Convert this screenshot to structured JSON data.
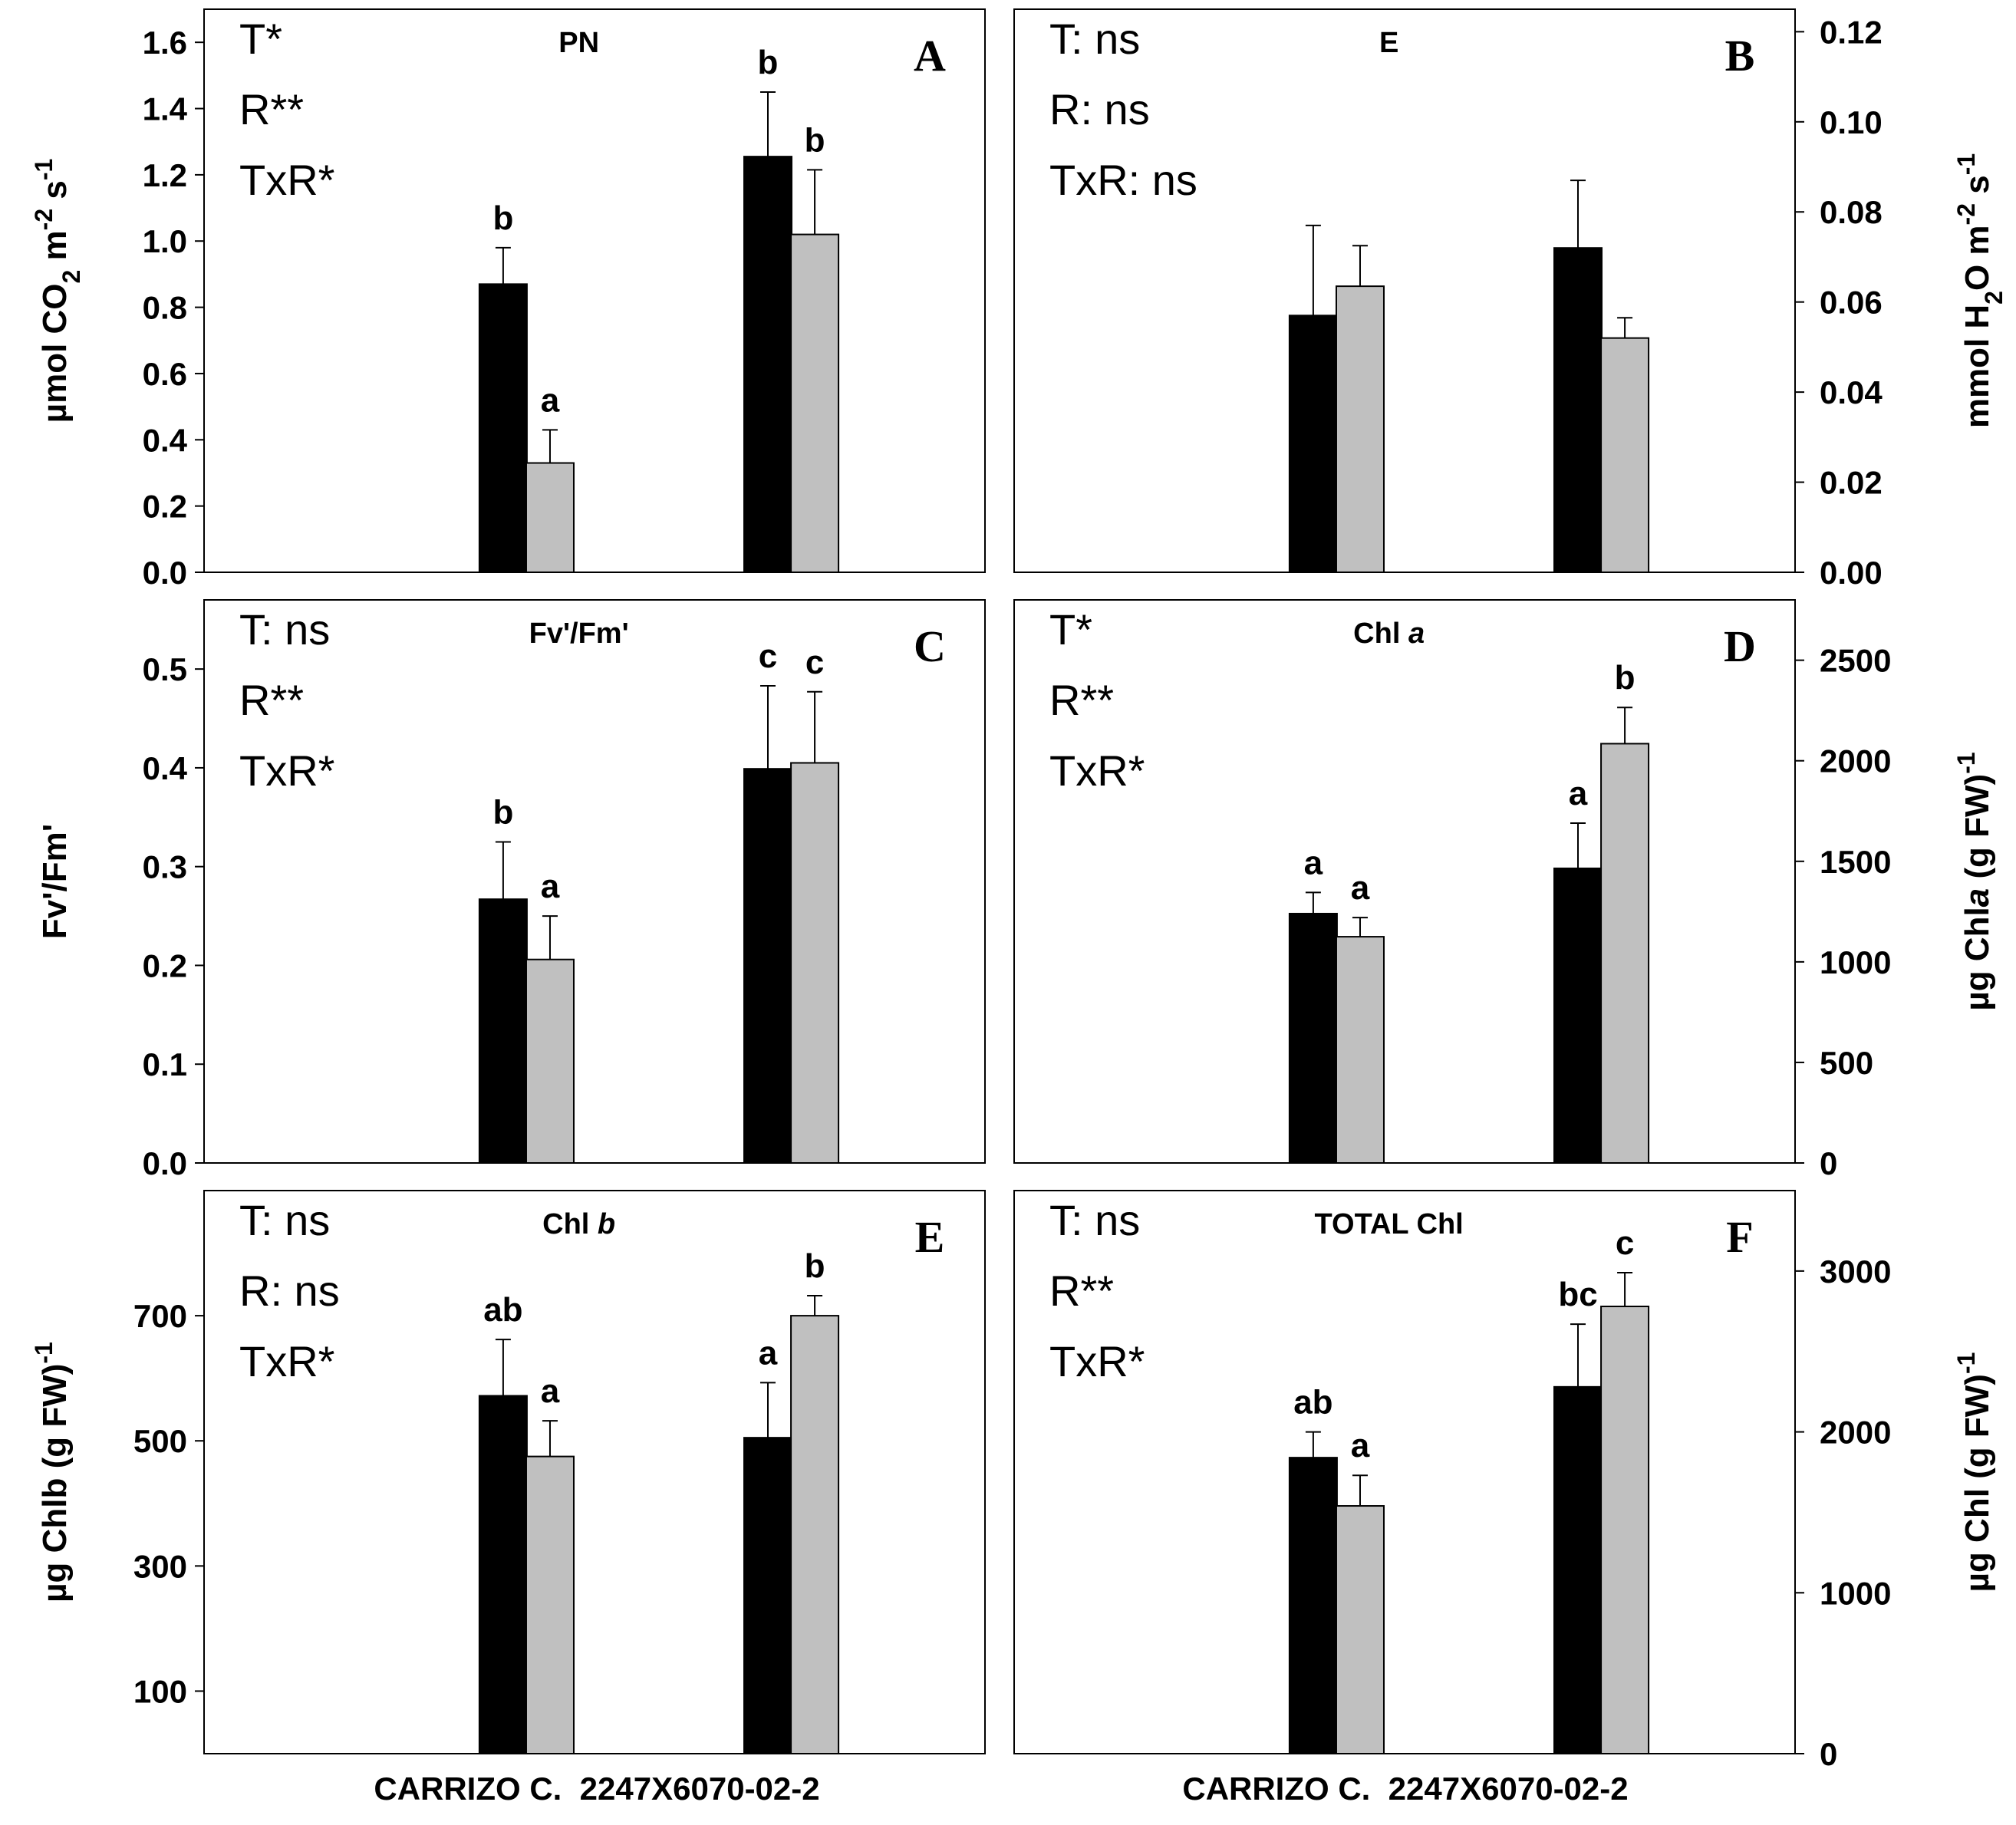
{
  "colors": {
    "treat1": "#000000",
    "treat2": "#c0c0c0",
    "axis": "#000000",
    "background": "#ffffff"
  },
  "bottom_labels": {
    "left": "CARRIZO C.  2247X6070-02-2",
    "right": "CARRIZO C.  2247X6070-02-2"
  },
  "chart_data": [
    {
      "id": "A",
      "type": "bar",
      "title": "PN",
      "letter": "A",
      "y_side": "left",
      "ylabel": "µmol CO2 m-2 s-1",
      "ylabel_parts": [
        {
          "t": "µmol CO"
        },
        {
          "t": "2",
          "s": "sub"
        },
        {
          "t": " m"
        },
        {
          "t": "-2",
          "s": "sup"
        },
        {
          "t": " s"
        },
        {
          "t": "-1",
          "s": "sup"
        }
      ],
      "ylim": [
        0,
        1.7
      ],
      "yticks": [
        "0.0",
        "0.2",
        "0.4",
        "0.6",
        "0.8",
        "1.0",
        "1.2",
        "1.4",
        "1.6"
      ],
      "stats": [
        "T*",
        "R**",
        "TxR*"
      ],
      "categories": [
        "CARRIZO C.",
        "2247X6070-02-2"
      ],
      "series": [
        {
          "name": "black",
          "values": [
            0.87,
            1.255
          ],
          "errors": [
            0.11,
            0.195
          ],
          "labels": [
            "b",
            "b"
          ]
        },
        {
          "name": "grey",
          "values": [
            0.33,
            1.02
          ],
          "errors": [
            0.1,
            0.195
          ],
          "labels": [
            "a",
            "b"
          ]
        }
      ]
    },
    {
      "id": "B",
      "type": "bar",
      "title": "E",
      "letter": "B",
      "y_side": "right",
      "ylabel": "mmol H2O m-2 s-1",
      "ylabel_parts": [
        {
          "t": "mmol H"
        },
        {
          "t": "2",
          "s": "sub"
        },
        {
          "t": "O m"
        },
        {
          "t": "-2",
          "s": "sup"
        },
        {
          "t": " s"
        },
        {
          "t": "-1",
          "s": "sup"
        }
      ],
      "ylim": [
        0,
        0.125
      ],
      "yticks": [
        "0.00",
        "0.02",
        "0.04",
        "0.06",
        "0.08",
        "0.10",
        "0.12"
      ],
      "stats": [
        "T: ns",
        "R: ns",
        "TxR: ns"
      ],
      "categories": [
        "CARRIZO C.",
        "2247X6070-02-2"
      ],
      "series": [
        {
          "name": "black",
          "values": [
            0.057,
            0.072
          ],
          "errors": [
            0.02,
            0.015
          ],
          "labels": [
            "",
            ""
          ]
        },
        {
          "name": "grey",
          "values": [
            0.0635,
            0.052
          ],
          "errors": [
            0.009,
            0.0045
          ],
          "labels": [
            "",
            ""
          ]
        }
      ]
    },
    {
      "id": "C",
      "type": "bar",
      "title": "Fv'/Fm'",
      "letter": "C",
      "y_side": "left",
      "ylabel": "Fv'/Fm'",
      "ylabel_parts": [
        {
          "t": "Fv'/Fm'"
        }
      ],
      "ylim": [
        0,
        0.57
      ],
      "yticks": [
        "0.0",
        "0.1",
        "0.2",
        "0.3",
        "0.4",
        "0.5"
      ],
      "stats": [
        "T: ns",
        "R**",
        "TxR*"
      ],
      "categories": [
        "CARRIZO C.",
        "2247X6070-02-2"
      ],
      "series": [
        {
          "name": "black",
          "values": [
            0.267,
            0.399
          ],
          "errors": [
            0.058,
            0.084
          ],
          "labels": [
            "b",
            "c"
          ]
        },
        {
          "name": "grey",
          "values": [
            0.206,
            0.405
          ],
          "errors": [
            0.044,
            0.072
          ],
          "labels": [
            "a",
            "c"
          ]
        }
      ]
    },
    {
      "id": "D",
      "type": "bar",
      "title": "Chl a",
      "title_italic": "a",
      "letter": "D",
      "y_side": "right",
      "ylabel": "µg Chla (g FW)-1",
      "ylabel_parts": [
        {
          "t": "µg Chl"
        },
        {
          "t": "a",
          "s": "it"
        },
        {
          "t": " (g FW)"
        },
        {
          "t": "-1",
          "s": "sup"
        }
      ],
      "ylim": [
        0,
        2800
      ],
      "yticks": [
        "0",
        "500",
        "1000",
        "1500",
        "2000",
        "2500"
      ],
      "stats": [
        "T*",
        "R**",
        "TxR*"
      ],
      "categories": [
        "CARRIZO C.",
        "2247X6070-02-2"
      ],
      "series": [
        {
          "name": "black",
          "values": [
            1240,
            1465
          ],
          "errors": [
            105,
            225
          ],
          "labels": [
            "a",
            "a"
          ]
        },
        {
          "name": "grey",
          "values": [
            1125,
            2085
          ],
          "errors": [
            95,
            180
          ],
          "labels": [
            "a",
            "b"
          ]
        }
      ]
    },
    {
      "id": "E",
      "type": "bar",
      "title": "Chl b",
      "title_italic": "b",
      "letter": "E",
      "y_side": "left",
      "ylabel": "µg Chlb (g FW)-1",
      "ylabel_parts": [
        {
          "t": "µg Chlb (g FW)"
        },
        {
          "t": "-1",
          "s": "sup"
        }
      ],
      "ylim": [
        0,
        900
      ],
      "yticks": [
        "100",
        "300",
        "500",
        "700"
      ],
      "stats": [
        "T: ns",
        "R: ns",
        "TxR*"
      ],
      "categories": [
        "CARRIZO C.",
        "2247X6070-02-2"
      ],
      "series": [
        {
          "name": "black",
          "values": [
            572,
            505
          ],
          "errors": [
            90,
            88
          ],
          "labels": [
            "ab",
            "a"
          ]
        },
        {
          "name": "grey",
          "values": [
            475,
            700
          ],
          "errors": [
            57,
            32
          ],
          "labels": [
            "a",
            "b"
          ]
        }
      ]
    },
    {
      "id": "F",
      "type": "bar",
      "title": "TOTAL Chl",
      "letter": "F",
      "y_side": "right",
      "ylabel": "µg Chl (g FW)-1",
      "ylabel_parts": [
        {
          "t": "µg Chl (g FW)"
        },
        {
          "t": "-1",
          "s": "sup"
        }
      ],
      "ylim": [
        0,
        3500
      ],
      "yticks": [
        "0",
        "1000",
        "2000",
        "3000"
      ],
      "stats": [
        "T: ns",
        "R**",
        "TxR*"
      ],
      "categories": [
        "CARRIZO C.",
        "2247X6070-02-2"
      ],
      "series": [
        {
          "name": "black",
          "values": [
            1840,
            2280
          ],
          "errors": [
            160,
            390
          ],
          "labels": [
            "ab",
            "bc"
          ]
        },
        {
          "name": "grey",
          "values": [
            1540,
            2780
          ],
          "errors": [
            190,
            210
          ],
          "labels": [
            "a",
            "c"
          ]
        }
      ]
    }
  ]
}
